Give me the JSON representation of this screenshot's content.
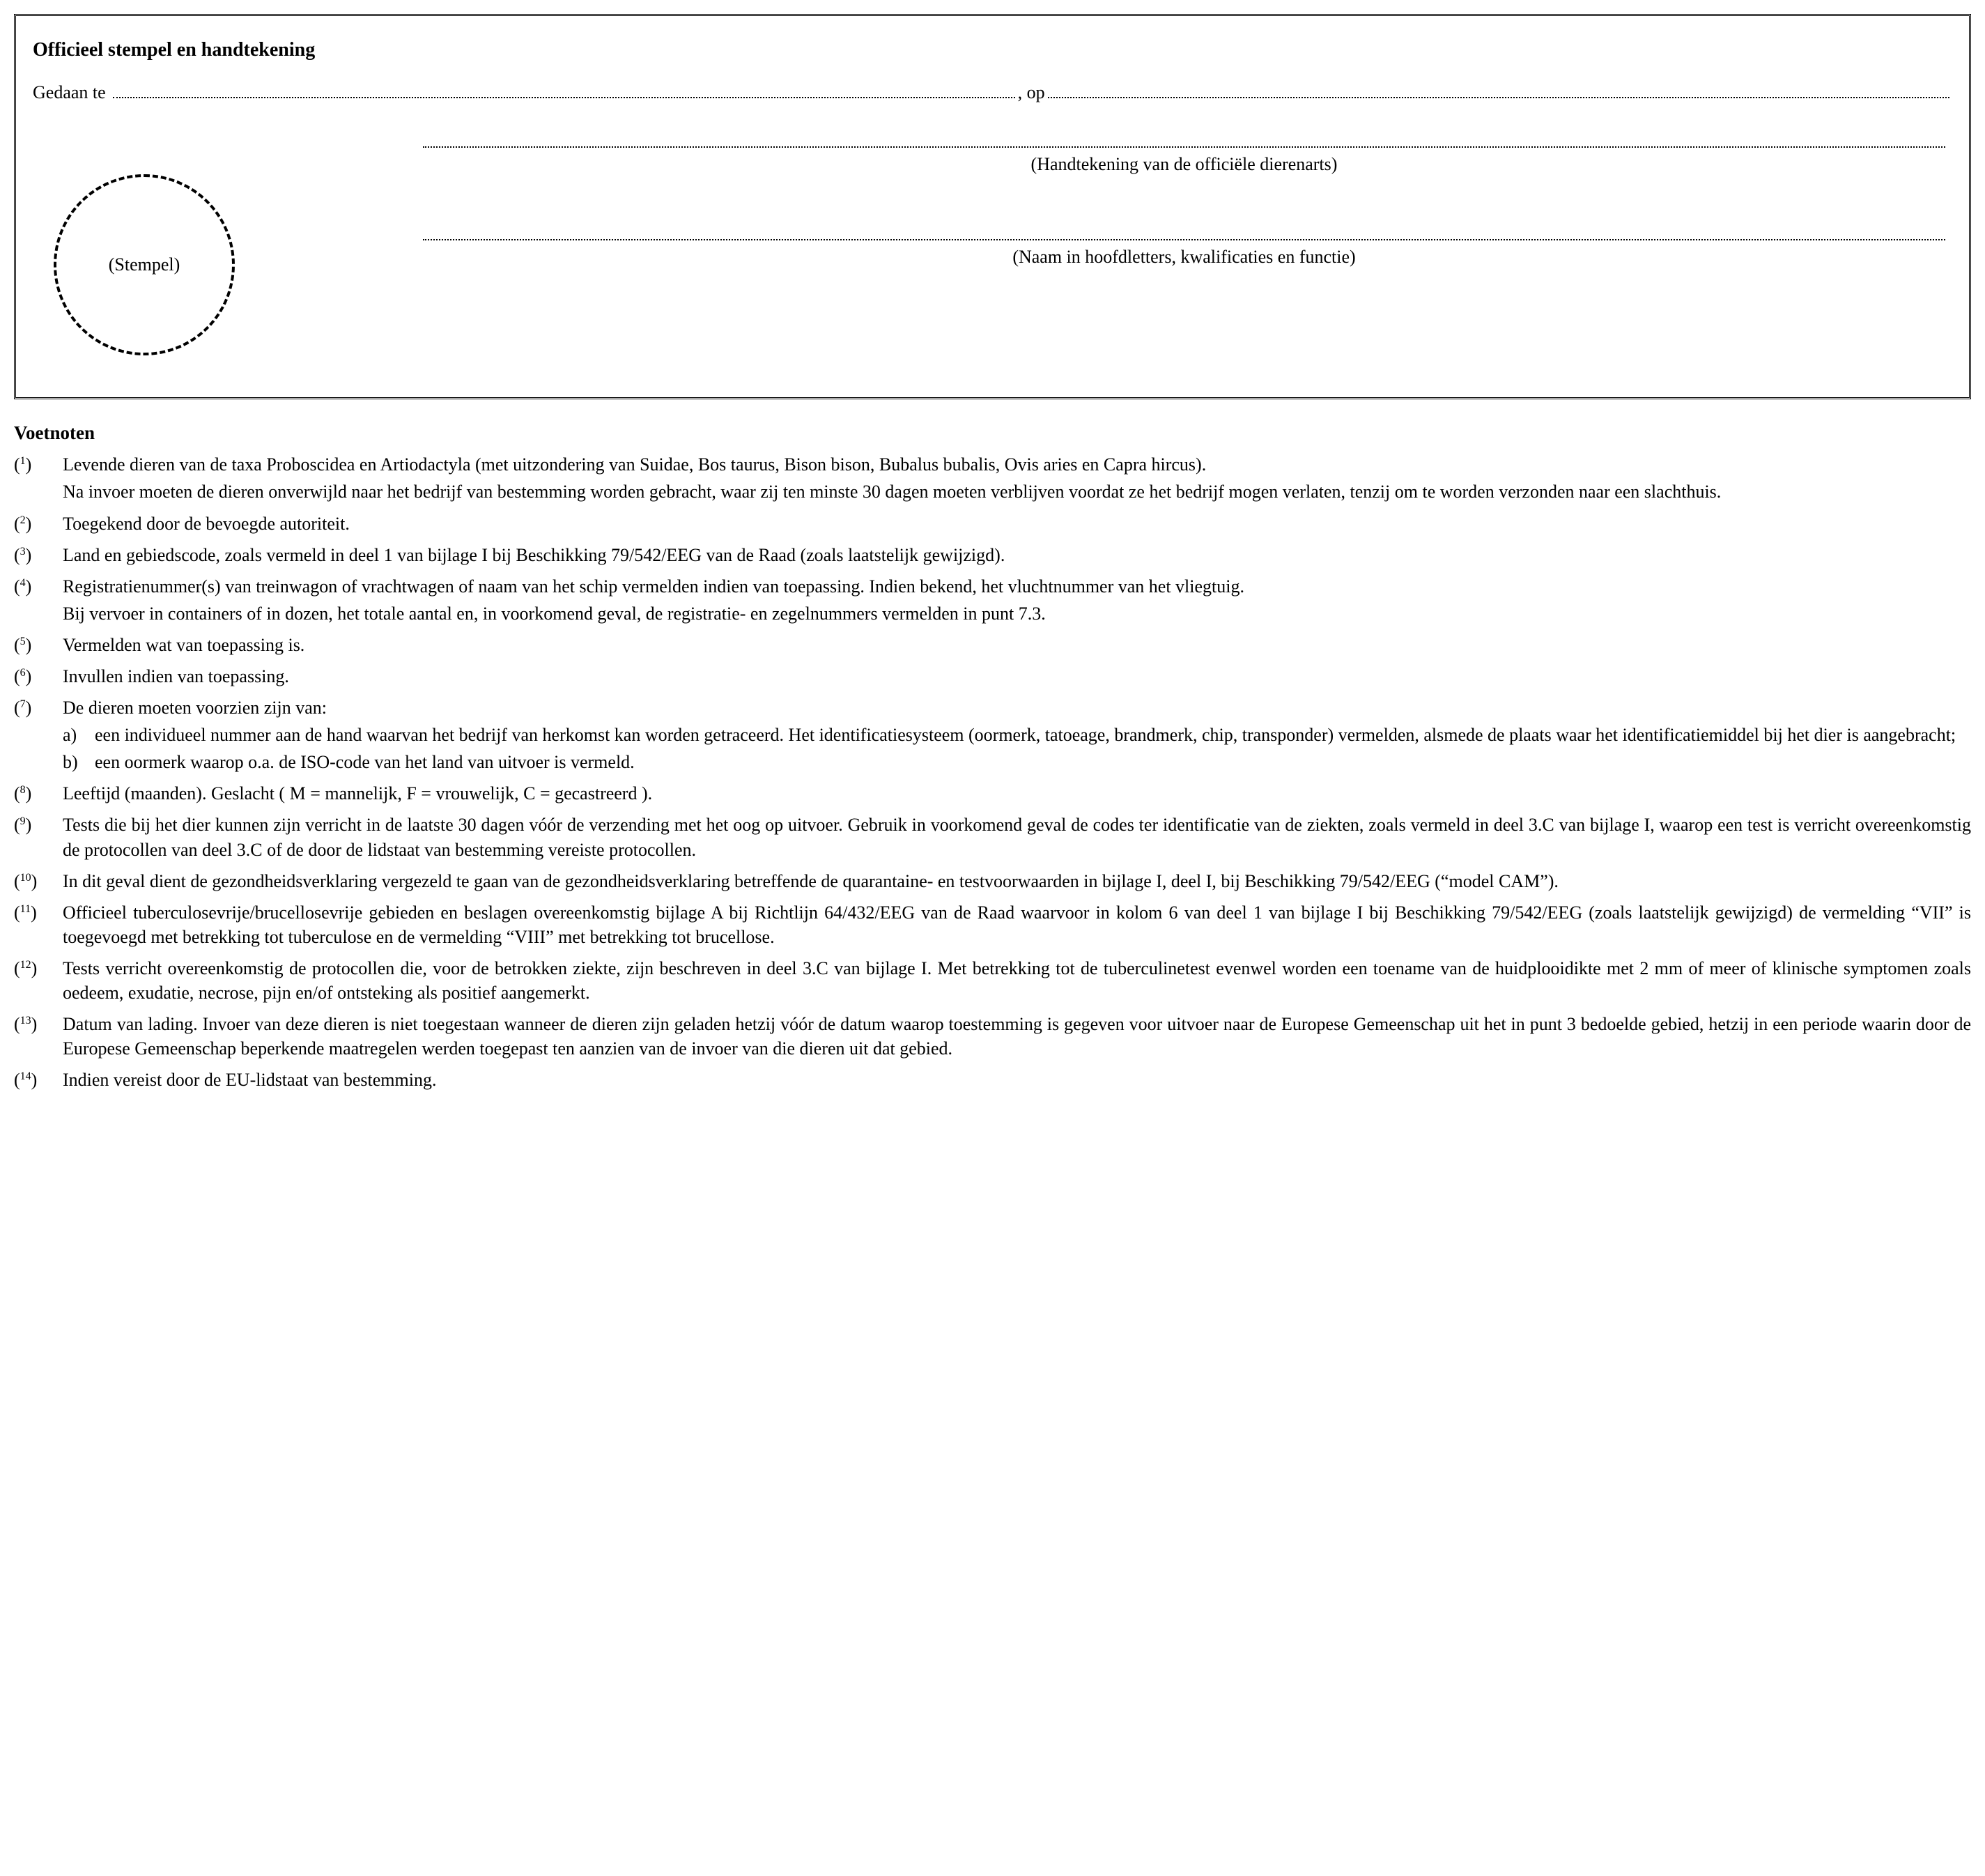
{
  "box": {
    "title": "Officieel stempel en handtekening",
    "done_at_label": "Gedaan te",
    "on_label": ", op",
    "stamp_label": "(Stempel)",
    "sig1_caption": "(Handtekening van de officiële dierenarts)",
    "sig2_caption": "(Naam in hoofdletters, kwalificaties en functie)"
  },
  "footnotes_title": "Voetnoten",
  "footnotes": [
    {
      "n": "1",
      "paras": [
        "Levende dieren van de taxa Proboscidea en Artiodactyla (met uitzondering van Suidae, Bos taurus, Bison bison, Bubalus bubalis, Ovis aries en Capra hircus).",
        "Na invoer moeten de dieren onverwijld naar het bedrijf van bestemming worden gebracht, waar zij ten minste 30 dagen moeten verblijven voordat ze het bedrijf mogen verlaten, tenzij om te worden verzonden naar een slachthuis."
      ]
    },
    {
      "n": "2",
      "paras": [
        "Toegekend door de bevoegde autoriteit."
      ]
    },
    {
      "n": "3",
      "paras": [
        "Land en gebiedscode, zoals vermeld in deel 1 van bijlage I bij Beschikking 79/542/EEG van de Raad (zoals laatstelijk gewijzigd)."
      ]
    },
    {
      "n": "4",
      "paras": [
        "Registratienummer(s) van treinwagon of vrachtwagen of naam van het schip vermelden indien van toepassing. Indien bekend, het vluchtnummer van het vliegtuig.",
        "Bij vervoer in containers of in dozen, het totale aantal en, in voorkomend geval, de registratie- en zegelnummers vermelden in punt 7.3."
      ]
    },
    {
      "n": "5",
      "paras": [
        "Vermelden wat van toepassing is."
      ]
    },
    {
      "n": "6",
      "paras": [
        "Invullen indien van toepassing."
      ]
    },
    {
      "n": "7",
      "paras": [
        "De dieren moeten voorzien zijn van:"
      ],
      "subs": [
        {
          "m": "a)",
          "text": "een individueel nummer aan de hand waarvan het bedrijf van herkomst kan worden getraceerd. Het identificatiesysteem (oormerk, tatoeage, brandmerk, chip, transponder) vermelden, alsmede de plaats waar het identificatiemiddel bij het dier is aangebracht;"
        },
        {
          "m": "b)",
          "text": "een oormerk waarop o.a. de ISO-code van het land van uitvoer is vermeld."
        }
      ]
    },
    {
      "n": "8",
      "paras": [
        "Leeftijd (maanden). Geslacht ( M = mannelijk, F = vrouwelijk, C = gecastreerd )."
      ]
    },
    {
      "n": "9",
      "paras": [
        "Tests die bij het dier kunnen zijn verricht in de laatste 30 dagen vóór de verzending met het oog op uitvoer. Gebruik in voorkomend geval de codes ter identificatie van de ziekten, zoals vermeld in deel 3.C van bijlage I, waarop een test is verricht overeenkomstig de protocollen van deel 3.C of de door de lidstaat van bestemming vereiste protocollen."
      ]
    },
    {
      "n": "10",
      "paras": [
        "In dit geval dient de gezondheidsverklaring vergezeld te gaan van de gezondheidsverklaring betreffende de quarantaine- en testvoorwaarden in bijlage I, deel I, bij Beschikking 79/542/EEG (“model CAM”)."
      ]
    },
    {
      "n": "11",
      "paras": [
        "Officieel tuberculosevrije/brucellosevrije gebieden en beslagen overeenkomstig bijlage A bij Richtlijn 64/432/EEG van de Raad waarvoor in kolom 6 van deel 1 van bijlage I bij Beschikking 79/542/EEG (zoals laatstelijk gewijzigd) de vermelding “VII” is toegevoegd met betrekking tot tuberculose en de vermelding “VIII” met betrekking tot brucellose."
      ]
    },
    {
      "n": "12",
      "paras": [
        "Tests verricht overeenkomstig de protocollen die, voor de betrokken ziekte, zijn beschreven in deel 3.C van bijlage I. Met betrekking tot de tuberculinetest evenwel worden een toename van de huidplooidikte met 2 mm of meer of klinische symptomen zoals oedeem, exudatie, necrose, pijn en/of ontsteking als positief aangemerkt."
      ]
    },
    {
      "n": "13",
      "paras": [
        "Datum van lading. Invoer van deze dieren is niet toegestaan wanneer de dieren zijn geladen hetzij vóór de datum waarop toestemming is gegeven voor uitvoer naar de Europese Gemeenschap uit het in punt 3 bedoelde gebied, hetzij in een periode waarin door de Europese Gemeenschap beperkende maatregelen werden toegepast ten aanzien van de invoer van die dieren uit dat gebied."
      ]
    },
    {
      "n": "14",
      "paras": [
        "Indien vereist door de EU-lidstaat van bestemming."
      ]
    }
  ]
}
